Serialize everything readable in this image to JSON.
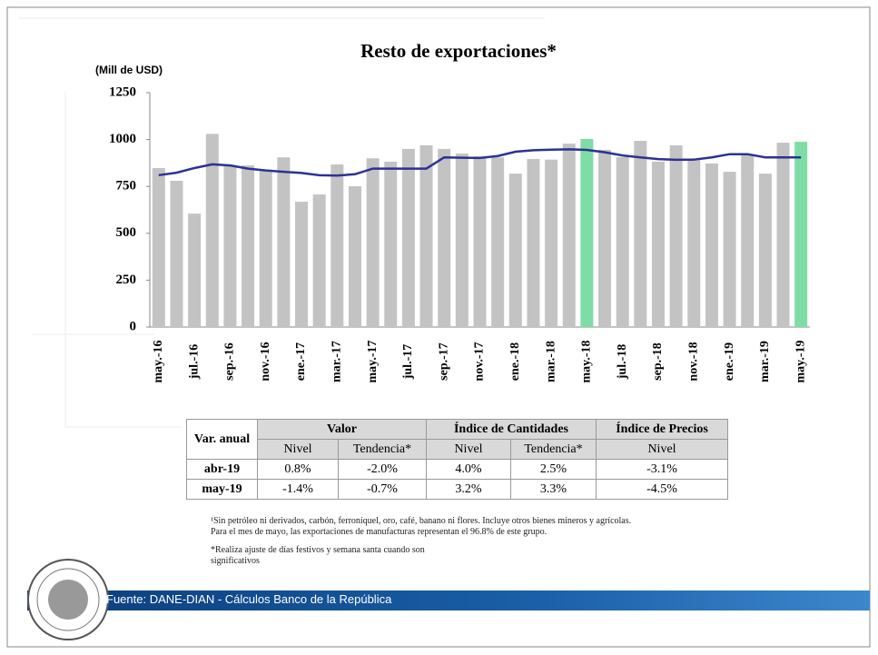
{
  "chart_data": {
    "type": "bar",
    "title": "Resto de exportaciones*",
    "y_label": "(Mill de USD)",
    "categories": [
      "may.-16",
      null,
      "jul.-16",
      null,
      "sep.-16",
      null,
      "nov.-16",
      null,
      "ene.-17",
      null,
      "mar.-17",
      null,
      "may.-17",
      null,
      "jul.-17",
      null,
      "sep.-17",
      null,
      "nov.-17",
      null,
      "ene.-18",
      null,
      "mar.-18",
      null,
      "may.-18",
      null,
      "jul.-18",
      null,
      "sep.-18",
      null,
      "nov.-18",
      null,
      "ene.-19",
      null,
      "mar.-19",
      null,
      "may.-19"
    ],
    "series": [
      {
        "type": "bar",
        "values": [
          848,
          780,
          605,
          1030,
          860,
          862,
          840,
          905,
          668,
          707,
          867,
          751,
          900,
          882,
          950,
          969,
          950,
          925,
          910,
          905,
          818,
          896,
          893,
          978,
          1003,
          945,
          906,
          993,
          882,
          969,
          891,
          872,
          828,
          920,
          818,
          983,
          988
        ],
        "colors": [
          "#c3c3c3",
          "#c3c3c3",
          "#c3c3c3",
          "#c3c3c3",
          "#c3c3c3",
          "#c3c3c3",
          "#c3c3c3",
          "#c3c3c3",
          "#c3c3c3",
          "#c3c3c3",
          "#c3c3c3",
          "#c3c3c3",
          "#c3c3c3",
          "#c3c3c3",
          "#c3c3c3",
          "#c3c3c3",
          "#c3c3c3",
          "#c3c3c3",
          "#c3c3c3",
          "#c3c3c3",
          "#c3c3c3",
          "#c3c3c3",
          "#c3c3c3",
          "#c3c3c3",
          "#7fdca6",
          "#c3c3c3",
          "#c3c3c3",
          "#c3c3c3",
          "#c3c3c3",
          "#c3c3c3",
          "#c3c3c3",
          "#c3c3c3",
          "#c3c3c3",
          "#c3c3c3",
          "#c3c3c3",
          "#c3c3c3",
          "#7fdca6"
        ]
      },
      {
        "type": "line",
        "color": "#2e3192",
        "values": [
          810,
          823,
          848,
          868,
          862,
          845,
          835,
          828,
          822,
          810,
          808,
          815,
          845,
          845,
          845,
          845,
          905,
          903,
          902,
          912,
          935,
          943,
          946,
          948,
          945,
          932,
          915,
          905,
          896,
          892,
          893,
          905,
          922,
          922,
          905,
          905,
          905
        ]
      }
    ],
    "ylim": [
      0,
      1250
    ],
    "yticks": [
      0,
      250,
      500,
      750,
      1000,
      1250
    ]
  },
  "table": {
    "corner": "Var. anual",
    "groups": [
      "Valor",
      "Índice de Cantidades",
      "Índice de Precios"
    ],
    "subheaders": [
      "Nivel",
      "Tendencia*",
      "Nivel",
      "Tendencia*",
      "Nivel"
    ],
    "rows": [
      [
        "abr-19",
        "0.8%",
        "-2.0%",
        "4.0%",
        "2.5%",
        "-3.1%"
      ],
      [
        "may-19",
        "-1.4%",
        "-0.7%",
        "3.2%",
        "3.3%",
        "-4.5%"
      ]
    ]
  },
  "footnotes": [
    "¹Sin petróleo ni derivados, carbón, ferroníquel, oro, café, banano ni flores. Incluye otros bienes mineros y agrícolas.\nPara el mes de mayo, las exportaciones de manufacturas representan el 96.8% de este grupo.",
    "*Realiza ajuste de días festivos y semana santa cuando son\nsignificativos"
  ],
  "footer": {
    "source": "Fuente: DANE-DIAN - Cálculos Banco de la República"
  }
}
